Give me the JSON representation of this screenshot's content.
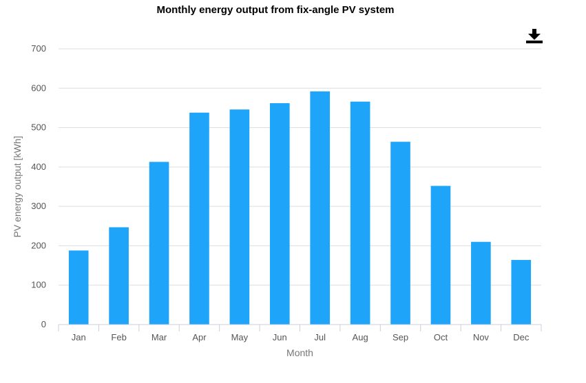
{
  "toolbar": {
    "download_icon": "download-icon"
  },
  "chart_data": {
    "type": "bar",
    "title": "Monthly energy output from fix-angle PV system",
    "xlabel": "Month",
    "ylabel": "PV energy output [kWh]",
    "categories": [
      "Jan",
      "Feb",
      "Mar",
      "Apr",
      "May",
      "Jun",
      "Jul",
      "Aug",
      "Sep",
      "Oct",
      "Nov",
      "Dec"
    ],
    "values": [
      188,
      247,
      413,
      538,
      546,
      562,
      592,
      566,
      464,
      352,
      210,
      164
    ],
    "ylim": [
      0,
      700
    ],
    "yticks": [
      0,
      100,
      200,
      300,
      400,
      500,
      600,
      700
    ],
    "grid": true,
    "legend": "none",
    "bar_color": "#1ea4f9"
  }
}
